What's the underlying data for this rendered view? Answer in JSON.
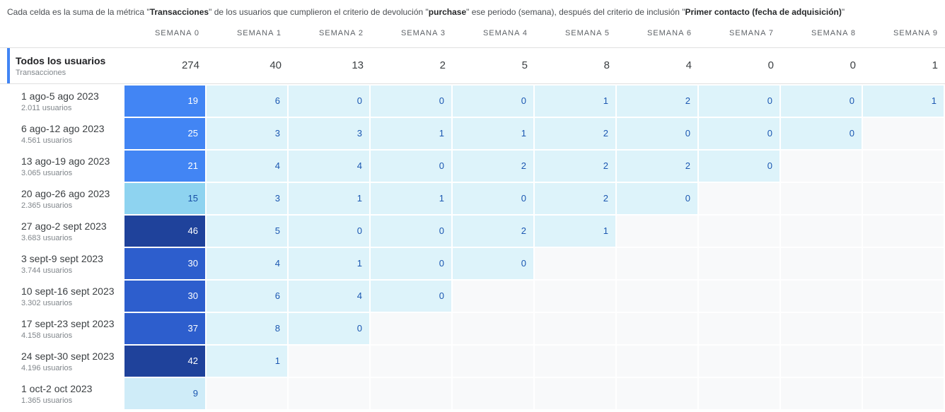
{
  "description": {
    "segments": [
      {
        "text": "Cada celda es la suma de la métrica \"",
        "bold": false
      },
      {
        "text": "Transacciones",
        "bold": true
      },
      {
        "text": "\" de los usuarios que cumplieron el criterio de devolución \"",
        "bold": false
      },
      {
        "text": "purchase",
        "bold": true
      },
      {
        "text": "\" ese periodo (semana), después del criterio de inclusión \"",
        "bold": false
      },
      {
        "text": "Primer contacto (fecha de adquisición)",
        "bold": true
      },
      {
        "text": "\"",
        "bold": false
      }
    ]
  },
  "table": {
    "column_headers": [
      "SEMANA 0",
      "SEMANA 1",
      "SEMANA 2",
      "SEMANA 3",
      "SEMANA 4",
      "SEMANA 5",
      "SEMANA 6",
      "SEMANA 7",
      "SEMANA 8",
      "SEMANA 9"
    ],
    "summary_row": {
      "label": "Todos los usuarios",
      "sublabel": "Transacciones",
      "values": [
        274,
        40,
        13,
        2,
        5,
        8,
        4,
        0,
        0,
        1
      ]
    },
    "rows": [
      {
        "label": "1 ago-5 ago 2023",
        "sublabel": "2.011 usuarios",
        "values": [
          19,
          6,
          0,
          0,
          0,
          1,
          2,
          0,
          0,
          1
        ],
        "week0_bg": "#4285f4",
        "week0_fg": "#ffffff"
      },
      {
        "label": "6 ago-12 ago 2023",
        "sublabel": "4.561 usuarios",
        "values": [
          25,
          3,
          3,
          1,
          1,
          2,
          0,
          0,
          0,
          null
        ],
        "week0_bg": "#4285f4",
        "week0_fg": "#ffffff"
      },
      {
        "label": "13 ago-19 ago 2023",
        "sublabel": "3.065 usuarios",
        "values": [
          21,
          4,
          4,
          0,
          2,
          2,
          2,
          0,
          null,
          null
        ],
        "week0_bg": "#4285f4",
        "week0_fg": "#ffffff"
      },
      {
        "label": "20 ago-26 ago 2023",
        "sublabel": "2.365 usuarios",
        "values": [
          15,
          3,
          1,
          1,
          0,
          2,
          0,
          null,
          null,
          null
        ],
        "week0_bg": "#8ed3f0",
        "week0_fg": "#174ea6"
      },
      {
        "label": "27 ago-2 sept 2023",
        "sublabel": "3.683 usuarios",
        "values": [
          46,
          5,
          0,
          0,
          2,
          1,
          null,
          null,
          null,
          null
        ],
        "week0_bg": "#1f429b",
        "week0_fg": "#ffffff"
      },
      {
        "label": "3 sept-9 sept 2023",
        "sublabel": "3.744 usuarios",
        "values": [
          30,
          4,
          1,
          0,
          0,
          null,
          null,
          null,
          null,
          null
        ],
        "week0_bg": "#2d5ecd",
        "week0_fg": "#ffffff"
      },
      {
        "label": "10 sept-16 sept 2023",
        "sublabel": "3.302 usuarios",
        "values": [
          30,
          6,
          4,
          0,
          null,
          null,
          null,
          null,
          null,
          null
        ],
        "week0_bg": "#2d5ecd",
        "week0_fg": "#ffffff"
      },
      {
        "label": "17 sept-23 sept 2023",
        "sublabel": "4.158 usuarios",
        "values": [
          37,
          8,
          0,
          null,
          null,
          null,
          null,
          null,
          null,
          null
        ],
        "week0_bg": "#2d5ecd",
        "week0_fg": "#ffffff"
      },
      {
        "label": "24 sept-30 sept 2023",
        "sublabel": "4.196 usuarios",
        "values": [
          42,
          1,
          null,
          null,
          null,
          null,
          null,
          null,
          null,
          null
        ],
        "week0_bg": "#1f429b",
        "week0_fg": "#ffffff"
      },
      {
        "label": "1 oct-2 oct 2023",
        "sublabel": "1.365 usuarios",
        "values": [
          9,
          null,
          null,
          null,
          null,
          null,
          null,
          null,
          null,
          null
        ],
        "week0_bg": "#cfecf8",
        "week0_fg": "#1b57b1"
      }
    ]
  },
  "colors": {
    "accent_bar": "#4285f4",
    "summary_border": "#e0e0e0",
    "light_cell_bg": "#ddf3fa",
    "empty_cell_bg": "#f8f9fa",
    "light_cell_text": "#1b57b1",
    "week0_scale": [
      "#cfecf8",
      "#8ed3f0",
      "#4285f4",
      "#2d5ecd",
      "#1f429b"
    ]
  },
  "chart_data": {
    "type": "heatmap",
    "title": "",
    "metric": "Transacciones",
    "x_labels": [
      "SEMANA 0",
      "SEMANA 1",
      "SEMANA 2",
      "SEMANA 3",
      "SEMANA 4",
      "SEMANA 5",
      "SEMANA 6",
      "SEMANA 7",
      "SEMANA 8",
      "SEMANA 9"
    ],
    "row_labels": [
      "1 ago-5 ago 2023",
      "6 ago-12 ago 2023",
      "13 ago-19 ago 2023",
      "20 ago-26 ago 2023",
      "27 ago-2 sept 2023",
      "3 sept-9 sept 2023",
      "10 sept-16 sept 2023",
      "17 sept-23 sept 2023",
      "24 sept-30 sept 2023",
      "1 oct-2 oct 2023"
    ],
    "row_users": [
      "2.011 usuarios",
      "4.561 usuarios",
      "3.065 usuarios",
      "2.365 usuarios",
      "3.683 usuarios",
      "3.744 usuarios",
      "3.302 usuarios",
      "4.158 usuarios",
      "4.196 usuarios",
      "1.365 usuarios"
    ],
    "totals_label": "Todos los usuarios",
    "totals": [
      274,
      40,
      13,
      2,
      5,
      8,
      4,
      0,
      0,
      1
    ],
    "matrix": [
      [
        19,
        6,
        0,
        0,
        0,
        1,
        2,
        0,
        0,
        1
      ],
      [
        25,
        3,
        3,
        1,
        1,
        2,
        0,
        0,
        0,
        null
      ],
      [
        21,
        4,
        4,
        0,
        2,
        2,
        2,
        0,
        null,
        null
      ],
      [
        15,
        3,
        1,
        1,
        0,
        2,
        0,
        null,
        null,
        null
      ],
      [
        46,
        5,
        0,
        0,
        2,
        1,
        null,
        null,
        null,
        null
      ],
      [
        30,
        4,
        1,
        0,
        0,
        null,
        null,
        null,
        null,
        null
      ],
      [
        30,
        6,
        4,
        0,
        null,
        null,
        null,
        null,
        null,
        null
      ],
      [
        37,
        8,
        0,
        null,
        null,
        null,
        null,
        null,
        null,
        null
      ],
      [
        42,
        1,
        null,
        null,
        null,
        null,
        null,
        null,
        null,
        null
      ],
      [
        9,
        null,
        null,
        null,
        null,
        null,
        null,
        null,
        null,
        null
      ]
    ],
    "legend_position": "none",
    "grid": false
  }
}
